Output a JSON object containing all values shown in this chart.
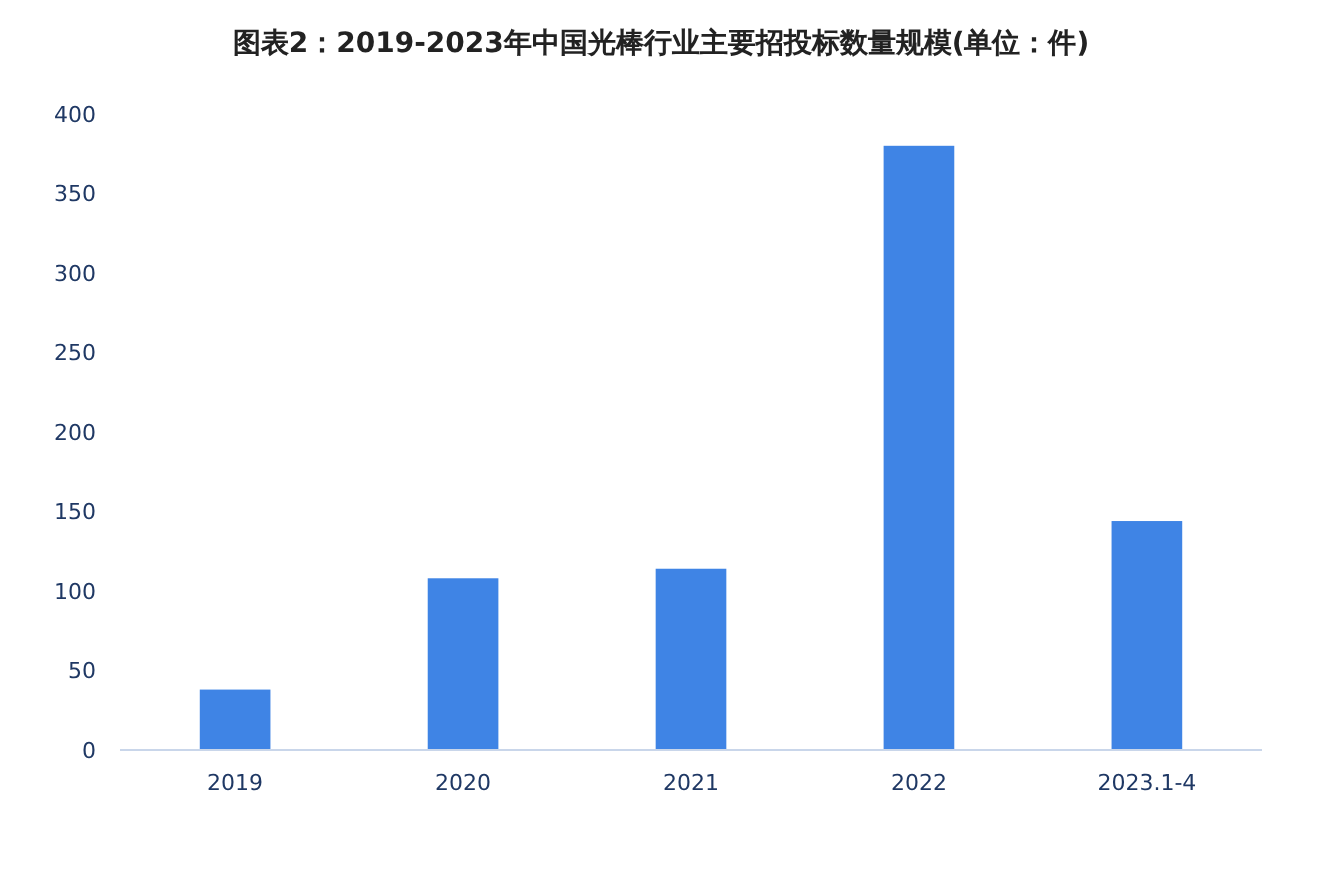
{
  "chart_data": {
    "type": "bar",
    "title": "图表2：2019-2023年中国光棒行业主要招投标数量规模(单位：件)",
    "categories": [
      "2019",
      "2020",
      "2021",
      "2022",
      "2023.1-4"
    ],
    "values": [
      38,
      108,
      114,
      380,
      144
    ],
    "color": "#3f84e5",
    "ylim": [
      0,
      400
    ],
    "yticks": [
      0,
      50,
      100,
      150,
      200,
      250,
      300,
      350,
      400
    ],
    "grid": false
  }
}
